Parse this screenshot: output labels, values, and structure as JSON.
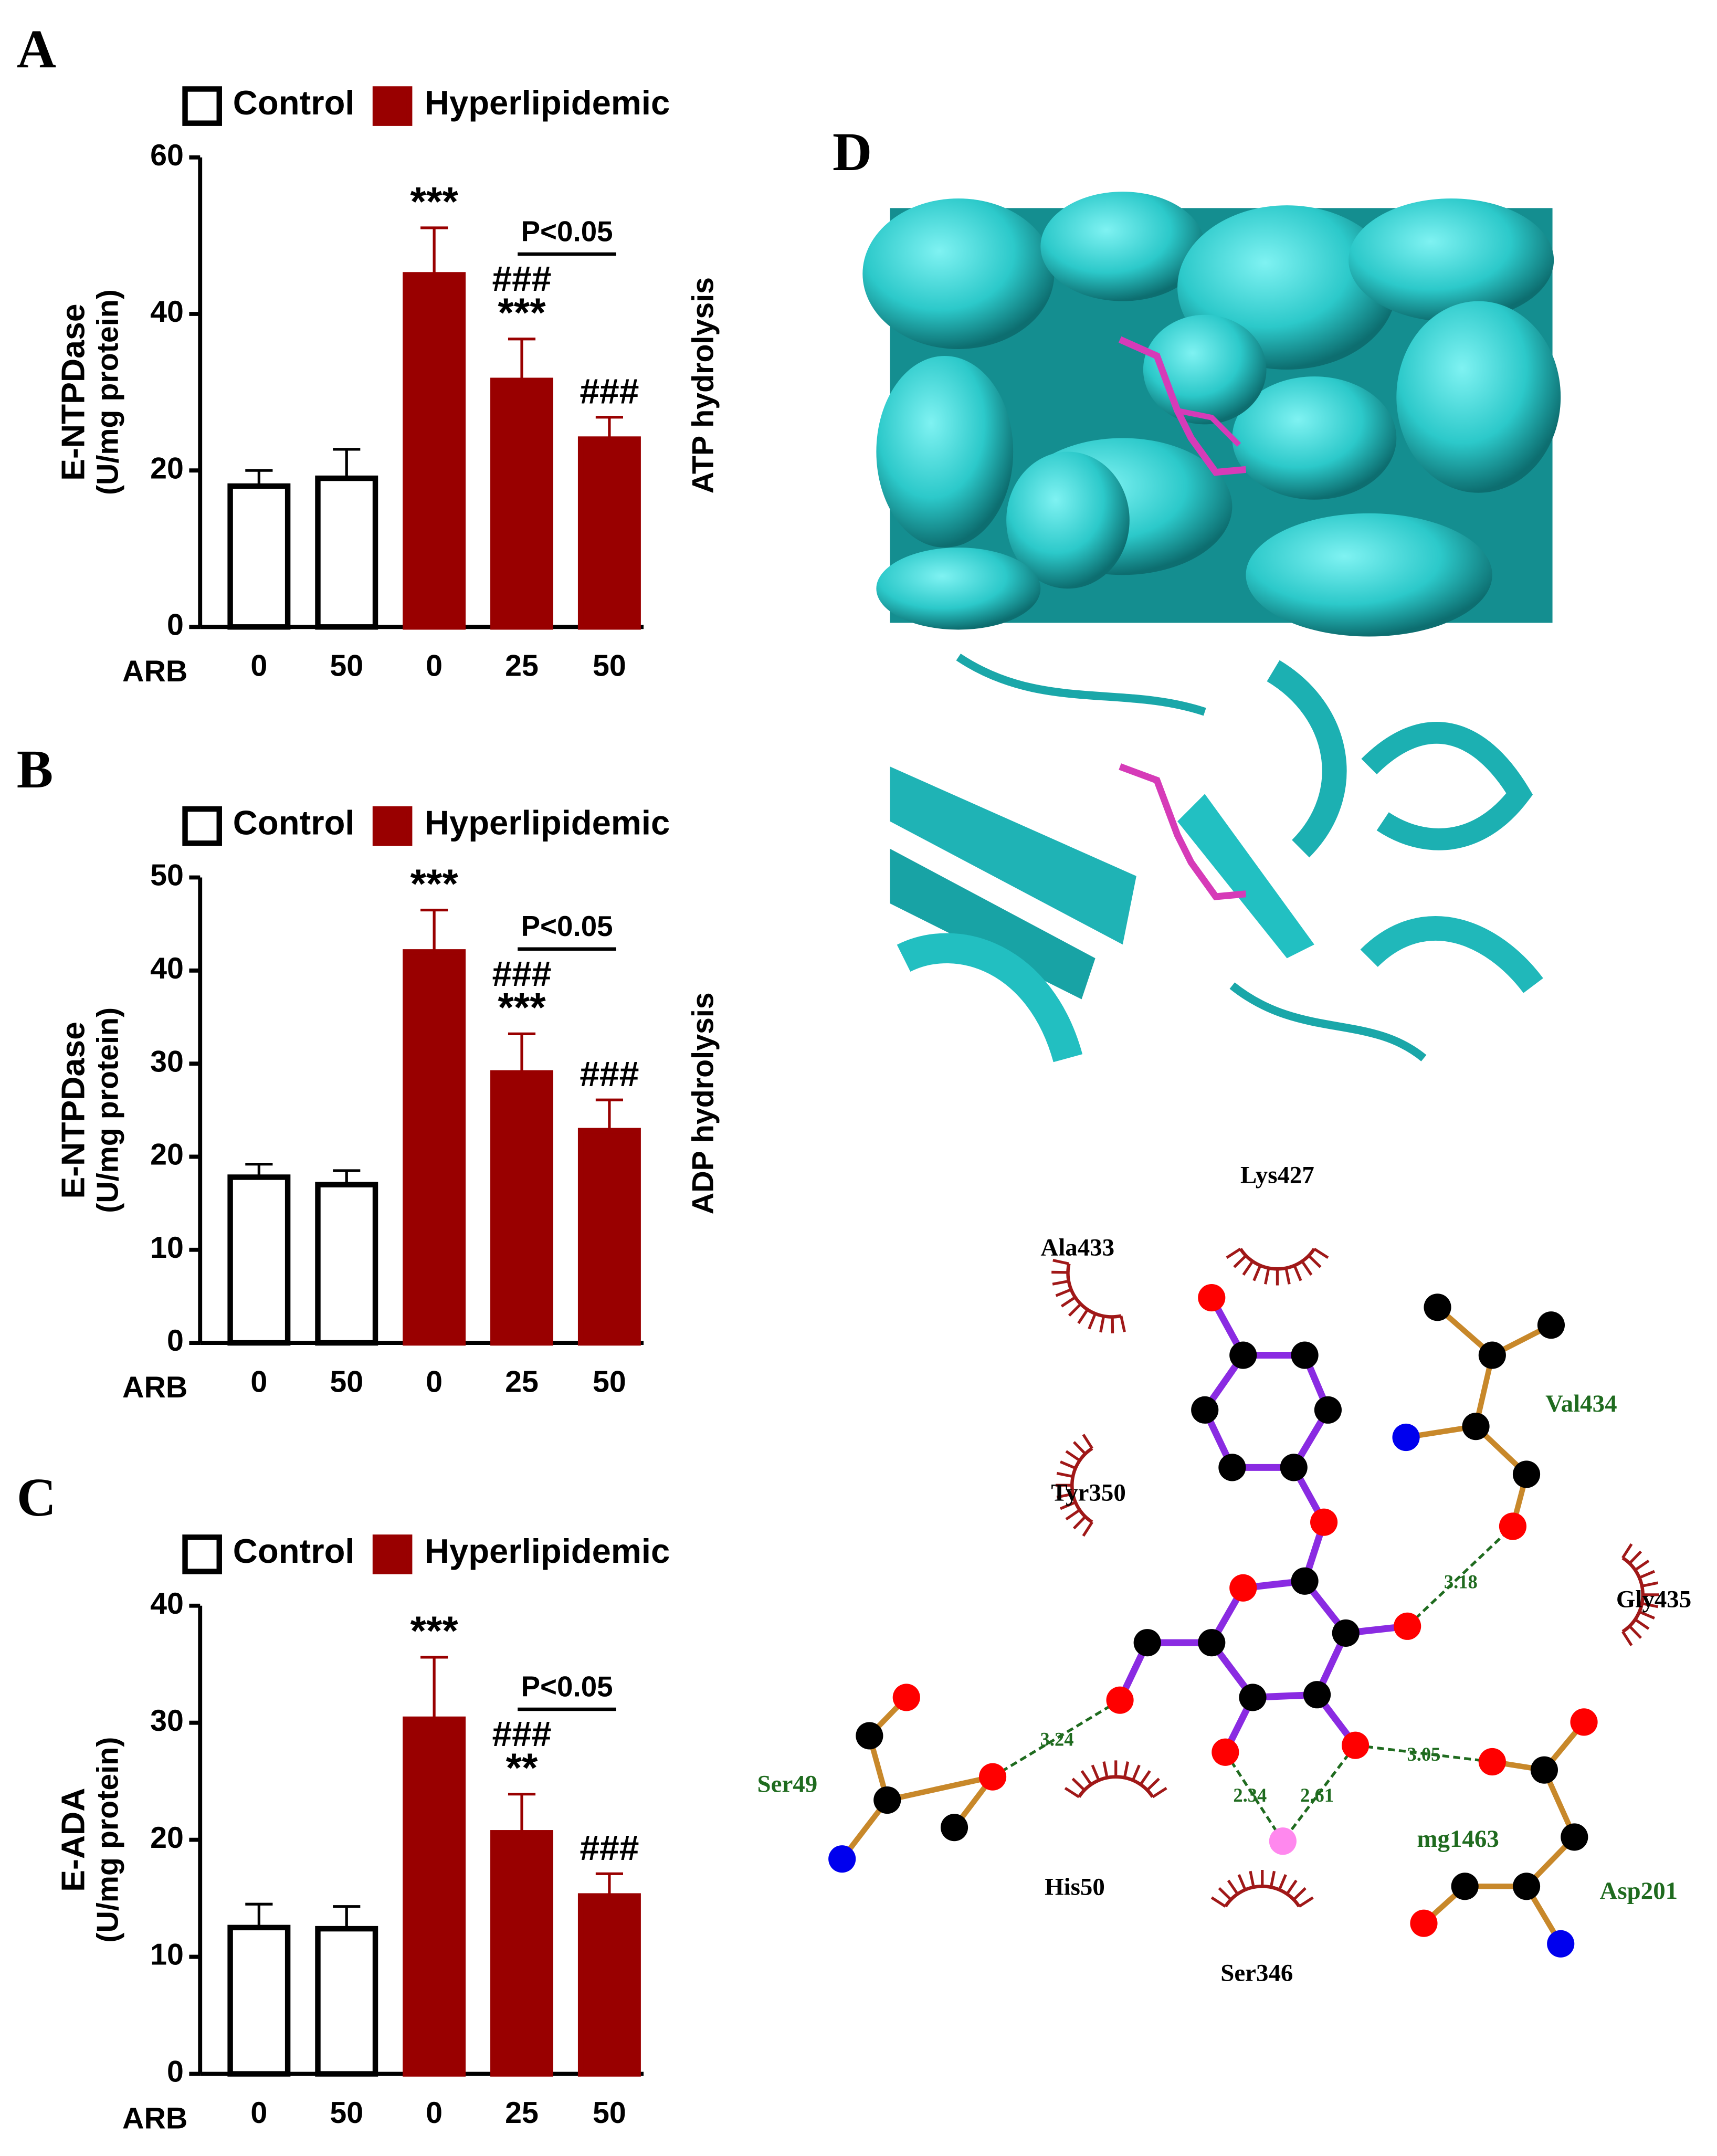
{
  "chart_data": [
    {
      "type": "bar",
      "panel": "A",
      "categories": [
        "0",
        "50",
        "0",
        "25",
        "50"
      ],
      "x_label": "ARB",
      "y_label": "E-NTPDase",
      "y_unit": "(U/mg protein)",
      "side_label": "ATP hydrolysis",
      "ylim": [
        0,
        60
      ],
      "yticks": [
        0,
        20,
        40,
        60
      ],
      "series": [
        {
          "name": "Control",
          "color": "#ffffff",
          "edge_color": "#000000",
          "values": [
            18,
            19,
            null,
            null,
            null
          ],
          "errors": [
            2,
            3.7,
            null,
            null,
            null
          ]
        },
        {
          "name": "Hyperlipidemic",
          "color": "#990000",
          "edge_color": "#990000",
          "values": [
            null,
            null,
            45,
            31.5,
            24
          ],
          "errors": [
            null,
            null,
            6,
            5.3,
            2.8
          ]
        }
      ],
      "annotations": [
        null,
        null,
        [
          "***"
        ],
        [
          "###",
          "***"
        ],
        [
          "###"
        ]
      ],
      "comparison": "P<0.05"
    },
    {
      "type": "bar",
      "panel": "B",
      "categories": [
        "0",
        "50",
        "0",
        "25",
        "50"
      ],
      "x_label": "ARB",
      "y_label": "E-NTPDase",
      "y_unit": "(U/mg protein)",
      "side_label": "ADP hydrolysis",
      "ylim": [
        0,
        50
      ],
      "yticks": [
        0,
        10,
        20,
        30,
        40,
        50
      ],
      "series": [
        {
          "name": "Control",
          "color": "#ffffff",
          "edge_color": "#000000",
          "values": [
            17.8,
            17,
            null,
            null,
            null
          ],
          "errors": [
            1.4,
            1.5,
            null,
            null,
            null
          ]
        },
        {
          "name": "Hyperlipidemic",
          "color": "#990000",
          "edge_color": "#990000",
          "values": [
            null,
            null,
            42,
            29,
            22.8
          ],
          "errors": [
            null,
            null,
            4.5,
            4.2,
            3.3
          ]
        }
      ],
      "annotations": [
        null,
        null,
        [
          "***"
        ],
        [
          "###",
          "***"
        ],
        [
          "###"
        ]
      ],
      "comparison": "P<0.05"
    },
    {
      "type": "bar",
      "panel": "C",
      "categories": [
        "0",
        "50",
        "0",
        "25",
        "50"
      ],
      "x_label": "ARB",
      "y_label": "E-ADA",
      "y_unit": "(U/mg protein)",
      "ylim": [
        0,
        40
      ],
      "yticks": [
        0,
        10,
        20,
        30,
        40
      ],
      "series": [
        {
          "name": "Control",
          "color": "#ffffff",
          "edge_color": "#000000",
          "values": [
            12.5,
            12.4,
            null,
            null,
            null
          ],
          "errors": [
            2,
            1.9,
            null,
            null,
            null
          ]
        },
        {
          "name": "Hyperlipidemic",
          "color": "#990000",
          "edge_color": "#990000",
          "values": [
            null,
            null,
            30.3,
            20.6,
            15.2
          ],
          "errors": [
            null,
            null,
            5.3,
            3.3,
            1.9
          ]
        }
      ],
      "annotations": [
        null,
        null,
        [
          "***"
        ],
        [
          "###",
          "**"
        ],
        [
          "###"
        ]
      ],
      "comparison": "P<0.05"
    }
  ],
  "docking": {
    "panel": "D",
    "residues": [
      "Lys427",
      "Ala433",
      "Val434",
      "Tyr350",
      "Gly435",
      "Ser49",
      "His50",
      "Ser346",
      "mg1463",
      "Asp201"
    ],
    "distances": [
      3.18,
      3.24,
      3.05,
      2.34,
      2.61
    ]
  }
}
